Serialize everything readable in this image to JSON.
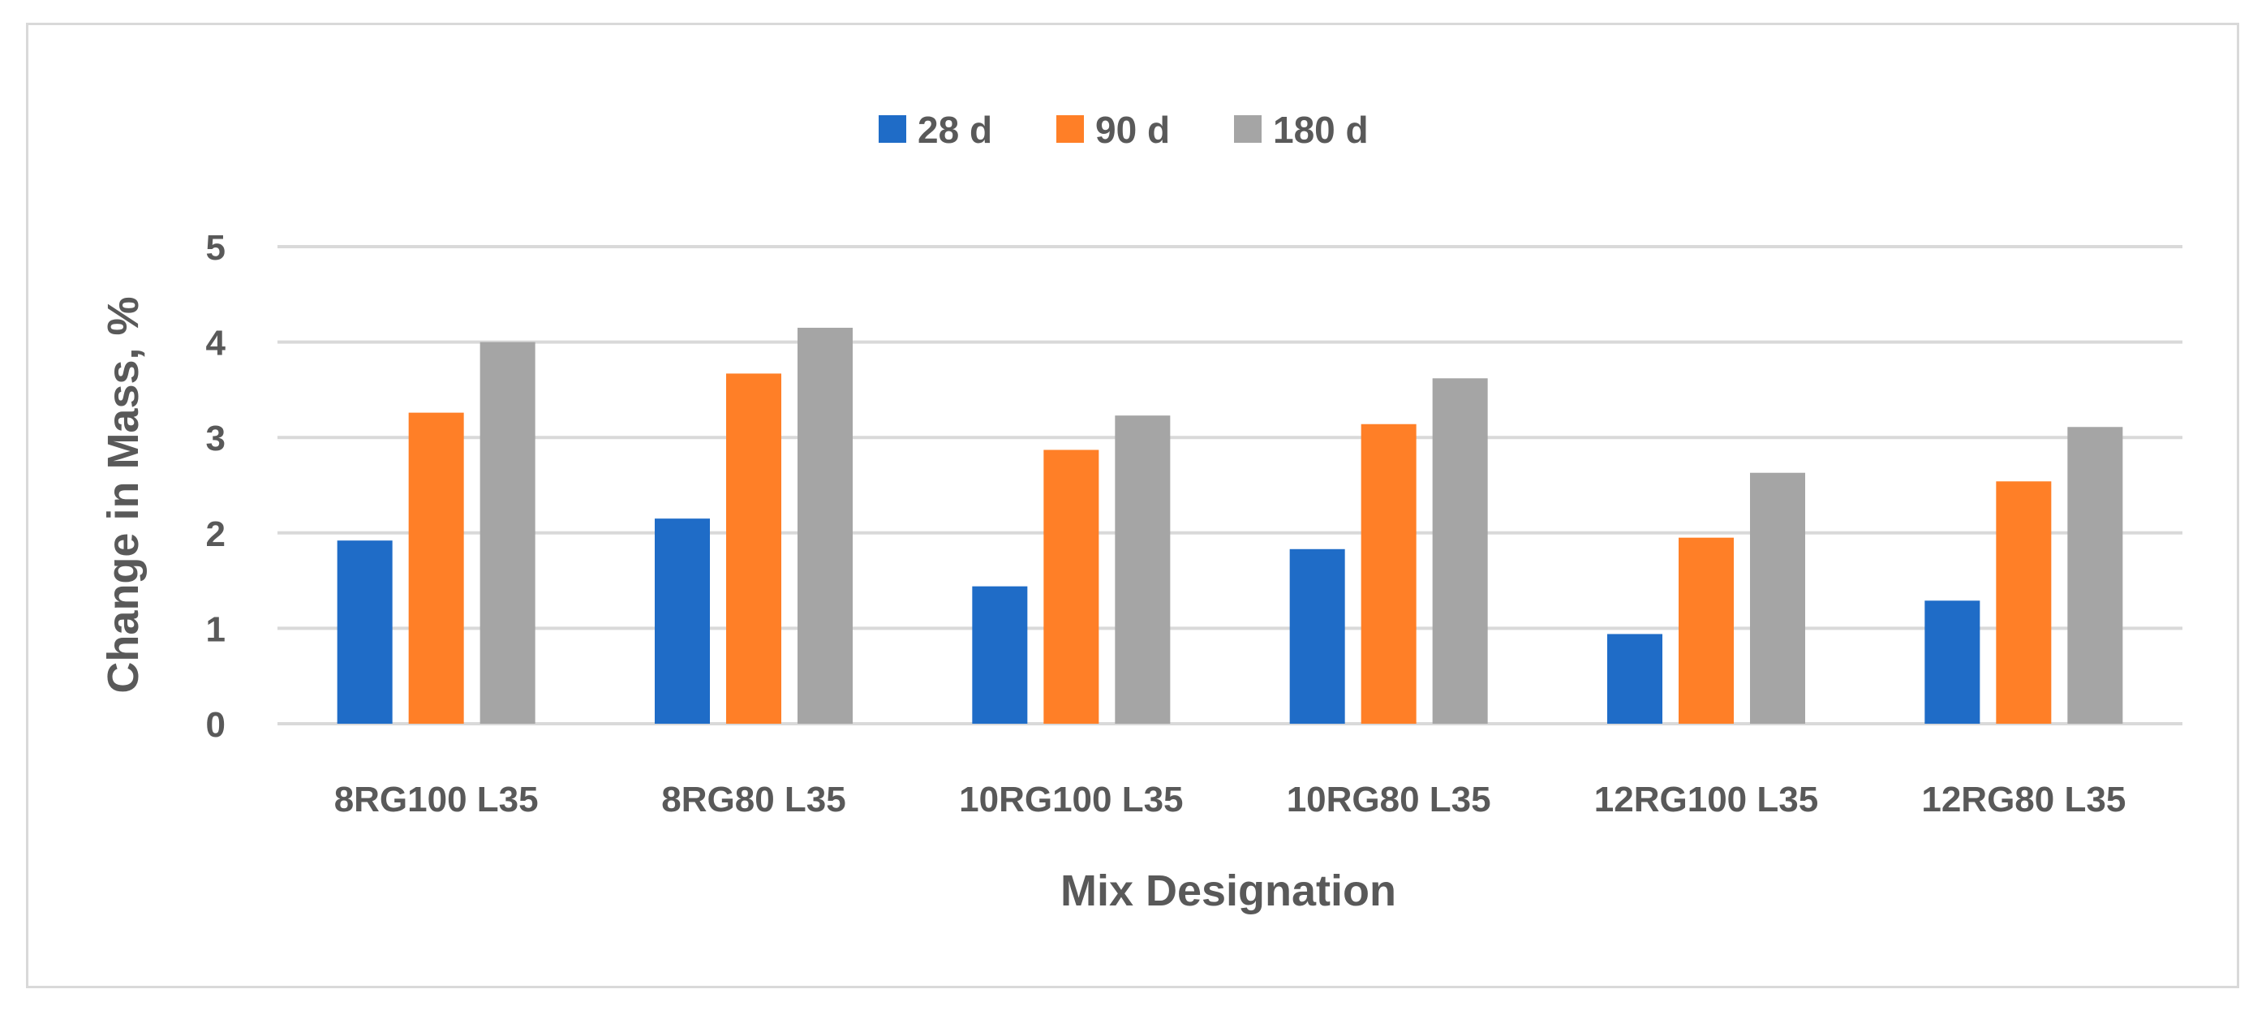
{
  "chart_data": {
    "type": "bar",
    "title": "",
    "xlabel": "Mix Designation",
    "ylabel": "Change in Mass, %",
    "ylim": [
      0,
      5
    ],
    "yticks": [
      "0",
      "1",
      "2",
      "3",
      "4",
      "5"
    ],
    "grid": true,
    "legend_position": "top-center",
    "categories": [
      "8RG100 L35",
      "8RG80 L35",
      "10RG100 L35",
      "10RG80 L35",
      "12RG100 L35",
      "12RG80 L35"
    ],
    "series": [
      {
        "name": "28 d",
        "color": "#1F6CC7",
        "values": [
          1.92,
          2.15,
          1.44,
          1.83,
          0.94,
          1.29
        ]
      },
      {
        "name": "90 d",
        "color": "#FF7F27",
        "values": [
          3.26,
          3.67,
          2.87,
          3.14,
          1.95,
          2.54
        ]
      },
      {
        "name": "180 d",
        "color": "#A5A5A5",
        "values": [
          4.0,
          4.15,
          3.23,
          3.62,
          2.63,
          3.11
        ]
      }
    ]
  }
}
